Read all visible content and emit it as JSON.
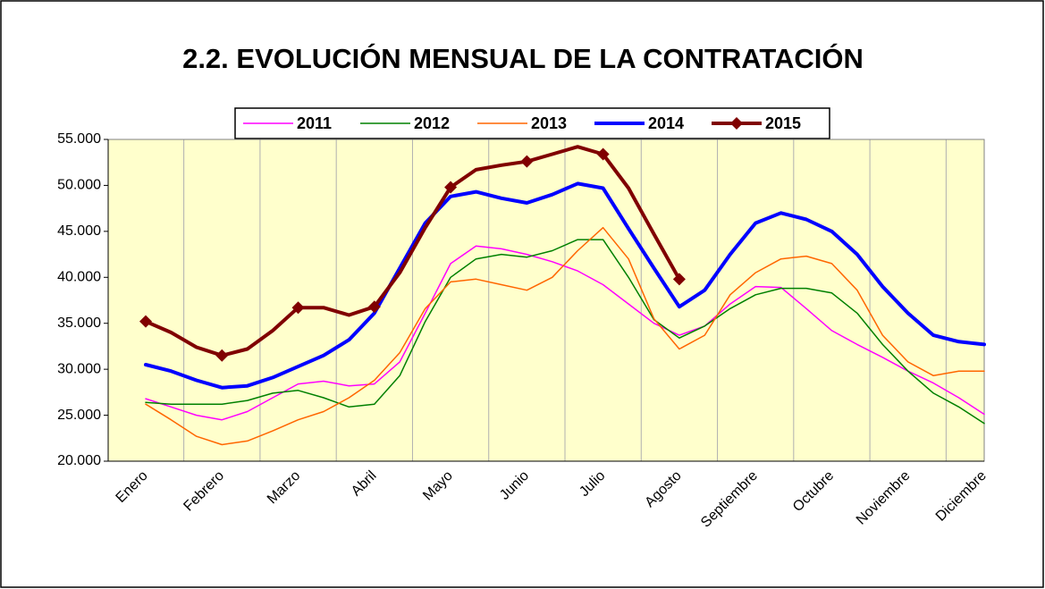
{
  "chart_data": {
    "type": "line",
    "title": "2.2. EVOLUCIÓN MENSUAL DE LA CONTRATACIÓN",
    "categories": [
      "Enero",
      null,
      null,
      "Febrero",
      null,
      null,
      "Marzo",
      null,
      null,
      "Abril",
      null,
      null,
      "Mayo",
      null,
      null,
      "Junio",
      null,
      null,
      "Julio",
      null,
      null,
      "Agosto",
      null,
      null,
      "Septiembre",
      null,
      null,
      "Octubre",
      null,
      null,
      "Noviembre",
      null,
      null,
      "Diciembre"
    ],
    "series": [
      {
        "name": "2011",
        "color": "#ff00ff",
        "line_width": 1.5,
        "values": [
          26800,
          25900,
          25000,
          24500,
          25400,
          26900,
          28400,
          28700,
          28200,
          28400,
          30800,
          36100,
          41500,
          43400,
          43100,
          42500,
          41700,
          40700,
          39200,
          37100,
          35000,
          33700,
          34700,
          37100,
          39000,
          38900,
          36600,
          34200,
          32700,
          31300,
          29800,
          28500,
          26900,
          25100
        ]
      },
      {
        "name": "2012",
        "color": "#008000",
        "line_width": 1.5,
        "values": [
          26400,
          26200,
          26200,
          26200,
          26600,
          27400,
          27700,
          26900,
          25900,
          26200,
          29300,
          35200,
          40000,
          42000,
          42500,
          42200,
          42900,
          44100,
          44100,
          40000,
          35400,
          33400,
          34700,
          36600,
          38100,
          38800,
          38800,
          38300,
          36100,
          32700,
          29800,
          27400,
          25900,
          24100
        ]
      },
      {
        "name": "2013",
        "color": "#ff6600",
        "line_width": 1.5,
        "values": [
          26200,
          24500,
          22700,
          21800,
          22200,
          23300,
          24500,
          25400,
          26900,
          28800,
          31800,
          36600,
          39500,
          39800,
          39200,
          38600,
          40000,
          42900,
          45400,
          42000,
          35500,
          32200,
          33700,
          38100,
          40500,
          42000,
          42300,
          41500,
          38600,
          33700,
          30800,
          29300,
          29800,
          29800
        ]
      },
      {
        "name": "2014",
        "color": "#0000ff",
        "line_width": 4,
        "values": [
          30500,
          29800,
          28800,
          28000,
          28200,
          29100,
          30300,
          31500,
          33200,
          36100,
          41000,
          45900,
          48800,
          49300,
          48600,
          48100,
          49000,
          50200,
          49700,
          45300,
          41000,
          36800,
          38600,
          42500,
          45900,
          47000,
          46300,
          45000,
          42500,
          39000,
          36100,
          33700,
          33000,
          32700
        ]
      },
      {
        "name": "2015",
        "color": "#800000",
        "line_width": 4,
        "marker": "diamond",
        "values": [
          35200,
          34000,
          32400,
          31500,
          32200,
          34200,
          36700,
          36700,
          35900,
          36800,
          40500,
          45400,
          49800,
          51700,
          52200,
          52600,
          53400,
          54200,
          53400,
          49700,
          44700,
          39800,
          null,
          null,
          null,
          null,
          null,
          null,
          null,
          null,
          null,
          null,
          null,
          null
        ]
      }
    ],
    "ylim": [
      20000,
      55000
    ],
    "yticks": [
      {
        "value": 20000,
        "label": "20.000"
      },
      {
        "value": 25000,
        "label": "25.000"
      },
      {
        "value": 30000,
        "label": "30.000"
      },
      {
        "value": 35000,
        "label": "35.000"
      },
      {
        "value": 40000,
        "label": "40.000"
      },
      {
        "value": 45000,
        "label": "45.000"
      },
      {
        "value": 50000,
        "label": "50.000"
      },
      {
        "value": 55000,
        "label": "55.000"
      }
    ],
    "background": "#ffffcc"
  }
}
